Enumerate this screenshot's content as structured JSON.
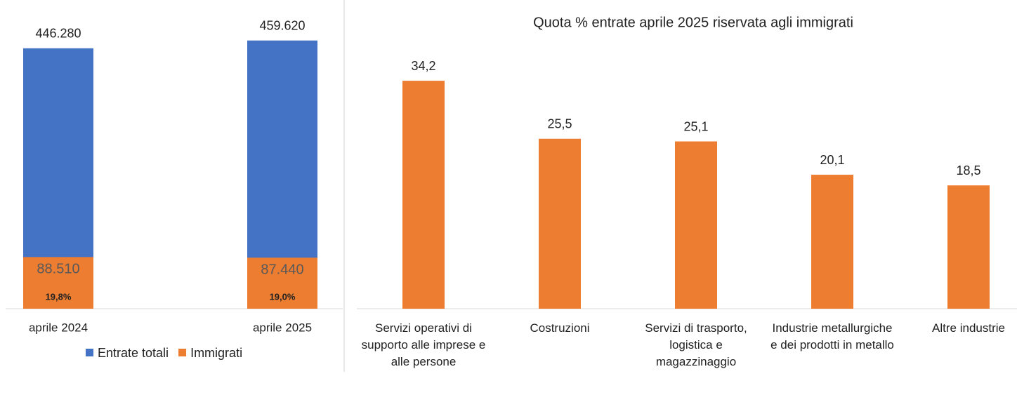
{
  "chart_data": [
    {
      "type": "bar",
      "categories": [
        "aprile 2024",
        "aprile 2025"
      ],
      "series": [
        {
          "name": "Entrate totali",
          "color": "#4472c4",
          "values": [
            446280,
            459620
          ],
          "value_labels": [
            "446.280",
            "459.620"
          ]
        },
        {
          "name": "Immigrati",
          "color": "#ed7d31",
          "values": [
            88510,
            87440
          ],
          "value_labels": [
            "88.510",
            "87.440"
          ]
        }
      ],
      "shares": {
        "values": [
          19.8,
          19.0
        ],
        "value_labels": [
          "19,8%",
          "19,0%"
        ]
      },
      "ylim": [
        0,
        517000
      ],
      "legend": "bottom"
    },
    {
      "type": "bar",
      "title": "Quota % entrate aprile 2025 riservata agli immigrati",
      "categories": [
        "Servizi operativi di supporto alle imprese e alle persone",
        "Costruzioni",
        "Servizi di trasporto, logistica e magazzinaggio",
        "Industrie metallurgiche e dei prodotti in metallo",
        "Altre industrie"
      ],
      "values": [
        34.2,
        25.5,
        25.1,
        20.1,
        18.5
      ],
      "value_labels": [
        "34,2",
        "25,5",
        "25,1",
        "20,1",
        "18,5"
      ],
      "color": "#ed7d31",
      "ylim": [
        0,
        40
      ]
    }
  ]
}
